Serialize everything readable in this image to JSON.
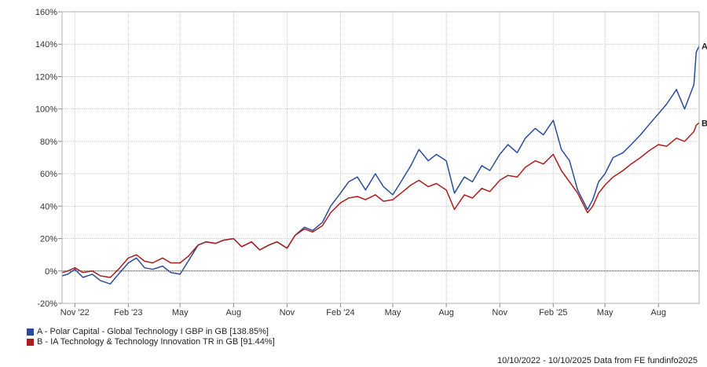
{
  "chart_data": {
    "type": "line",
    "ylim": [
      -20,
      160
    ],
    "ytick_labels": [
      "160%",
      "140%",
      "120%",
      "100%",
      "80%",
      "60%",
      "40%",
      "20%",
      "0%",
      "-20%"
    ],
    "ytick_values": [
      160,
      140,
      120,
      100,
      80,
      60,
      40,
      20,
      0,
      -20
    ],
    "xlim": [
      "2022-10-10",
      "2025-10-10"
    ],
    "xticks": [
      {
        "label": "Nov '22",
        "date": "2022-11-01"
      },
      {
        "label": "Feb '23",
        "date": "2023-02-01"
      },
      {
        "label": "May",
        "date": "2023-05-01"
      },
      {
        "label": "Aug",
        "date": "2023-08-01"
      },
      {
        "label": "Nov",
        "date": "2023-11-01"
      },
      {
        "label": "Feb '24",
        "date": "2024-02-01"
      },
      {
        "label": "May",
        "date": "2024-05-01"
      },
      {
        "label": "Aug",
        "date": "2024-08-01"
      },
      {
        "label": "Nov",
        "date": "2024-11-01"
      },
      {
        "label": "Feb '25",
        "date": "2025-02-01"
      },
      {
        "label": "May",
        "date": "2025-05-01"
      },
      {
        "label": "Aug",
        "date": "2025-08-01"
      }
    ],
    "grid": true,
    "series": [
      {
        "name": "A - Polar Capital - Global Technology I GBP in GB [138.85%]",
        "end_label": "A",
        "color": "#2b4c9b",
        "x": [
          "2022-10-10",
          "2022-10-20",
          "2022-11-01",
          "2022-11-15",
          "2022-12-01",
          "2022-12-15",
          "2023-01-01",
          "2023-01-15",
          "2023-02-01",
          "2023-02-15",
          "2023-03-01",
          "2023-03-15",
          "2023-04-01",
          "2023-04-15",
          "2023-05-01",
          "2023-05-15",
          "2023-06-01",
          "2023-06-15",
          "2023-07-01",
          "2023-07-15",
          "2023-08-01",
          "2023-08-15",
          "2023-09-01",
          "2023-09-15",
          "2023-10-01",
          "2023-10-15",
          "2023-11-01",
          "2023-11-15",
          "2023-12-01",
          "2023-12-15",
          "2024-01-01",
          "2024-01-15",
          "2024-02-01",
          "2024-02-15",
          "2024-03-01",
          "2024-03-15",
          "2024-04-01",
          "2024-04-15",
          "2024-05-01",
          "2024-05-15",
          "2024-06-01",
          "2024-06-15",
          "2024-07-01",
          "2024-07-15",
          "2024-08-01",
          "2024-08-15",
          "2024-09-01",
          "2024-09-15",
          "2024-10-01",
          "2024-10-15",
          "2024-11-01",
          "2024-11-15",
          "2024-12-01",
          "2024-12-15",
          "2025-01-01",
          "2025-01-15",
          "2025-02-01",
          "2025-02-15",
          "2025-03-01",
          "2025-03-15",
          "2025-04-01",
          "2025-04-10",
          "2025-04-20",
          "2025-05-01",
          "2025-05-15",
          "2025-06-01",
          "2025-06-15",
          "2025-07-01",
          "2025-07-15",
          "2025-08-01",
          "2025-08-15",
          "2025-09-01",
          "2025-09-15",
          "2025-10-01",
          "2025-10-05",
          "2025-10-10"
        ],
        "values": [
          -3,
          -2,
          1,
          -4,
          -2,
          -6,
          -8,
          -2,
          5,
          8,
          2,
          1,
          3,
          -1,
          -2,
          6,
          16,
          18,
          17,
          19,
          20,
          15,
          18,
          13,
          16,
          18,
          14,
          22,
          27,
          25,
          30,
          40,
          48,
          55,
          58,
          50,
          60,
          52,
          47,
          55,
          65,
          75,
          68,
          72,
          68,
          48,
          58,
          55,
          65,
          62,
          72,
          78,
          73,
          82,
          88,
          84,
          93,
          75,
          68,
          50,
          38,
          44,
          55,
          60,
          70,
          73,
          78,
          84,
          90,
          97,
          103,
          112,
          100,
          115,
          135,
          138.85
        ]
      },
      {
        "name": "B - IA Technology & Technology Innovation TR in GB [91.44%]",
        "end_label": "B",
        "color": "#b01c1c",
        "x": [
          "2022-10-10",
          "2022-10-20",
          "2022-11-01",
          "2022-11-15",
          "2022-12-01",
          "2022-12-15",
          "2023-01-01",
          "2023-01-15",
          "2023-02-01",
          "2023-02-15",
          "2023-03-01",
          "2023-03-15",
          "2023-04-01",
          "2023-04-15",
          "2023-05-01",
          "2023-05-15",
          "2023-06-01",
          "2023-06-15",
          "2023-07-01",
          "2023-07-15",
          "2023-08-01",
          "2023-08-15",
          "2023-09-01",
          "2023-09-15",
          "2023-10-01",
          "2023-10-15",
          "2023-11-01",
          "2023-11-15",
          "2023-12-01",
          "2023-12-15",
          "2024-01-01",
          "2024-01-15",
          "2024-02-01",
          "2024-02-15",
          "2024-03-01",
          "2024-03-15",
          "2024-04-01",
          "2024-04-15",
          "2024-05-01",
          "2024-05-15",
          "2024-06-01",
          "2024-06-15",
          "2024-07-01",
          "2024-07-15",
          "2024-08-01",
          "2024-08-15",
          "2024-09-01",
          "2024-09-15",
          "2024-10-01",
          "2024-10-15",
          "2024-11-01",
          "2024-11-15",
          "2024-12-01",
          "2024-12-15",
          "2025-01-01",
          "2025-01-15",
          "2025-02-01",
          "2025-02-15",
          "2025-03-01",
          "2025-03-15",
          "2025-04-01",
          "2025-04-10",
          "2025-04-20",
          "2025-05-01",
          "2025-05-15",
          "2025-06-01",
          "2025-06-15",
          "2025-07-01",
          "2025-07-15",
          "2025-08-01",
          "2025-08-15",
          "2025-09-01",
          "2025-09-15",
          "2025-10-01",
          "2025-10-05",
          "2025-10-10"
        ],
        "values": [
          -1,
          0,
          2,
          -1,
          0,
          -3,
          -4,
          1,
          8,
          10,
          6,
          5,
          8,
          5,
          5,
          9,
          16,
          18,
          17,
          19,
          20,
          15,
          18,
          13,
          16,
          18,
          14,
          22,
          26,
          24,
          28,
          36,
          42,
          45,
          46,
          44,
          47,
          43,
          44,
          48,
          53,
          56,
          52,
          54,
          50,
          38,
          47,
          45,
          51,
          49,
          56,
          59,
          58,
          64,
          68,
          66,
          72,
          62,
          55,
          48,
          36,
          40,
          48,
          53,
          58,
          62,
          66,
          70,
          74,
          78,
          77,
          82,
          80,
          86,
          90,
          91.44
        ]
      }
    ]
  },
  "legend": [
    {
      "label": "A - Polar Capital - Global Technology I GBP in GB [138.85%]",
      "color": "#2b4c9b"
    },
    {
      "label": "B - IA Technology & Technology Innovation TR in GB [91.44%]",
      "color": "#b01c1c"
    }
  ],
  "footer": "10/10/2022 - 10/10/2025 Data from FE fundinfo2025"
}
